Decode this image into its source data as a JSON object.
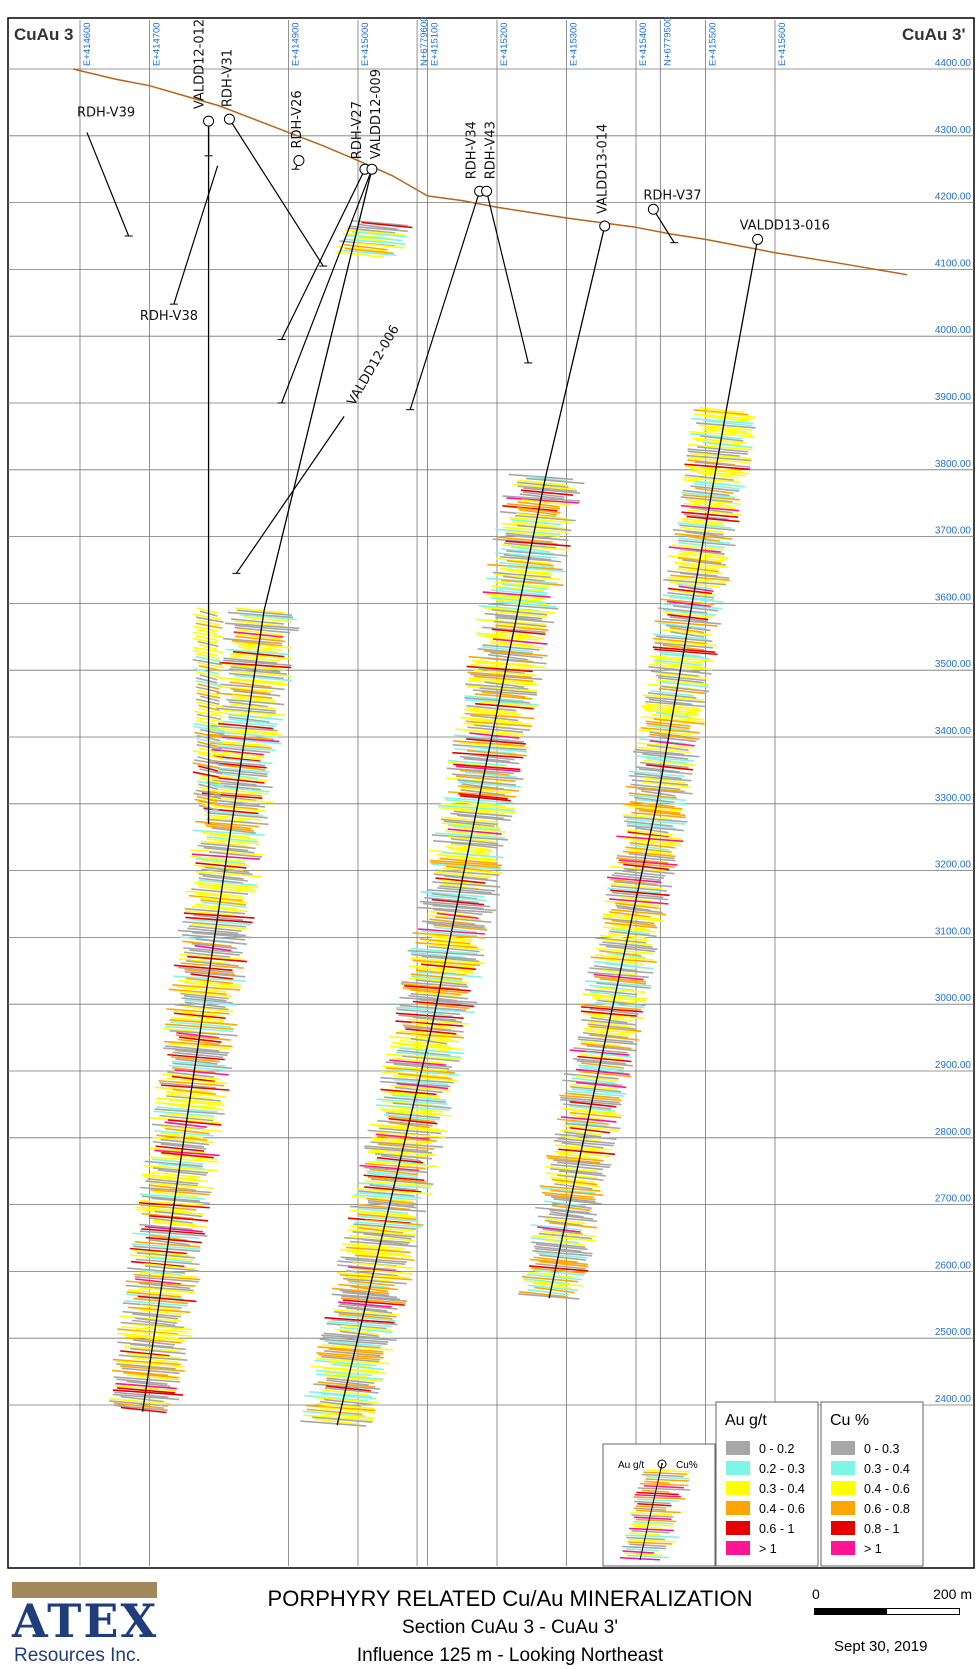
{
  "section": {
    "left_label": "CuAu 3",
    "right_label": "CuAu 3'",
    "eastings": [
      {
        "label": "E+414600",
        "x": 414600
      },
      {
        "label": "E+414700",
        "x": 414700
      },
      {
        "label": "E+414900",
        "x": 414900
      },
      {
        "label": "E+415000",
        "x": 415000
      },
      {
        "label": "N+6779600",
        "x": 415085
      },
      {
        "label": "E+415100",
        "x": 415100
      },
      {
        "label": "E+415200",
        "x": 415200
      },
      {
        "label": "E+415300",
        "x": 415300
      },
      {
        "label": "E+415400",
        "x": 415400
      },
      {
        "label": "N+6779500",
        "x": 415435
      },
      {
        "label": "E+415500",
        "x": 415500
      },
      {
        "label": "E+415600",
        "x": 415600
      }
    ],
    "elevations": [
      "4400.00",
      "4300.00",
      "4200.00",
      "4100.00",
      "4000.00",
      "3900.00",
      "3800.00",
      "3700.00",
      "3600.00",
      "3500.00",
      "3400.00",
      "3300.00",
      "3200.00",
      "3100.00",
      "3000.00",
      "2900.00",
      "2800.00",
      "2700.00",
      "2600.00",
      "2500.00",
      "2400.00"
    ],
    "topography": [
      [
        414590,
        4400
      ],
      [
        414650,
        4385
      ],
      [
        414700,
        4375
      ],
      [
        414750,
        4360
      ],
      [
        414800,
        4345
      ],
      [
        414850,
        4325
      ],
      [
        414900,
        4305
      ],
      [
        414950,
        4285
      ],
      [
        415000,
        4263
      ],
      [
        415050,
        4240
      ],
      [
        415100,
        4210
      ],
      [
        415150,
        4203
      ],
      [
        415200,
        4193
      ],
      [
        415250,
        4185
      ],
      [
        415300,
        4177
      ],
      [
        415350,
        4170
      ],
      [
        415400,
        4163
      ],
      [
        415450,
        4153
      ],
      [
        415500,
        4145
      ],
      [
        415550,
        4135
      ],
      [
        415600,
        4125
      ],
      [
        415700,
        4108
      ],
      [
        415790,
        4092
      ]
    ],
    "holes": [
      {
        "id": "VALDD12-012",
        "collar": [
          414785,
          4322
        ],
        "toe": [
          414785,
          4270
        ],
        "major": true,
        "lbl_dx": -5,
        "lbl_dy": -12,
        "rot": -90
      },
      {
        "id": "RDH-V31",
        "collar": [
          414815,
          4325
        ],
        "toe": [
          414950,
          4105
        ],
        "major": false,
        "lbl_dx": 2,
        "lbl_dy": -12,
        "rot": -90
      },
      {
        "id": "RDH-V26",
        "collar": [
          414915,
          4263
        ],
        "toe": [
          414910,
          4250
        ],
        "major": false,
        "lbl_dx": 2,
        "lbl_dy": -12,
        "rot": -90
      },
      {
        "id": "RDH-V27",
        "collar": [
          415010,
          4250
        ],
        "toe": [
          414890,
          3995
        ],
        "major": false,
        "lbl_dx": -4,
        "lbl_dy": -10,
        "rot": -90
      },
      {
        "id": "VALDD12-009",
        "collar": [
          415020,
          4250
        ],
        "toe": [
          414890,
          3900
        ],
        "major": true,
        "lbl_dx": 8,
        "lbl_dy": -10,
        "rot": -90
      },
      {
        "id": "RDH-V34",
        "collar": [
          415175,
          4217
        ],
        "toe": [
          415075,
          3890
        ],
        "major": false,
        "lbl_dx": -4,
        "lbl_dy": -12,
        "rot": -90
      },
      {
        "id": "RDH-V43",
        "collar": [
          415185,
          4217
        ],
        "toe": [
          415245,
          3960
        ],
        "major": false,
        "lbl_dx": 8,
        "lbl_dy": -12,
        "rot": -90
      },
      {
        "id": "VALDD13-014",
        "collar": [
          415355,
          4165
        ],
        "toe": [
          415355,
          4160
        ],
        "major": true,
        "lbl_dx": 2,
        "lbl_dy": -12,
        "rot": -90
      },
      {
        "id": "RDH-V37",
        "collar": [
          415425,
          4190
        ],
        "toe": [
          415455,
          4140
        ],
        "major": false,
        "lbl_dx": -10,
        "lbl_dy": -10,
        "rot": 0
      },
      {
        "id": "VALDD13-016",
        "collar": [
          415575,
          4145
        ],
        "toe": [
          415575,
          4140
        ],
        "major": true,
        "lbl_dx": -18,
        "lbl_dy": -10,
        "rot": 0
      },
      {
        "id": "RDH-V39",
        "collar": [
          414610,
          4305
        ],
        "toe": [
          414670,
          4150
        ],
        "major": false,
        "lbl_dx": -10,
        "lbl_dy": -16,
        "rot": 0
      },
      {
        "id": "RDH-V38",
        "collar": [
          414798,
          4255
        ],
        "toe": [
          414735,
          4048
        ],
        "major": false,
        "lbl_dx": -34,
        "lbl_dy": 16,
        "rot": 0,
        "lbl_at_toe": true
      },
      {
        "id": "VALDD12-006",
        "collar": [
          414980,
          3880
        ],
        "toe": [
          414825,
          3645
        ],
        "major": false,
        "lbl_dx": 10,
        "lbl_dy": -10,
        "rot": -60
      }
    ],
    "drill_traces": [
      {
        "id": "VALDD12-012",
        "points": [
          [
            414785,
            4322
          ],
          [
            414785,
            3270
          ]
        ],
        "ink": "#000"
      },
      {
        "id": "VALDD12-009",
        "points": [
          [
            415020,
            4250
          ],
          [
            414865,
            3590
          ],
          [
            414690,
            2390
          ]
        ],
        "ink": "#000"
      },
      {
        "id": "VALDD13-014",
        "points": [
          [
            415355,
            4165
          ],
          [
            415270,
            3790
          ],
          [
            415105,
            2960
          ],
          [
            414970,
            2370
          ]
        ],
        "ink": "#000"
      },
      {
        "id": "VALDD13-016",
        "points": [
          [
            415575,
            4145
          ],
          [
            415530,
            3890
          ],
          [
            415430,
            3300
          ],
          [
            415275,
            2560
          ]
        ],
        "ink": "#000"
      }
    ]
  },
  "legend": {
    "au_title": "Au g/t",
    "cu_title": "Cu %",
    "au_classes": [
      "0 - 0.2",
      "0.2 - 0.3",
      "0.3 - 0.4",
      "0.4 - 0.6",
      "0.6 - 1",
      "> 1"
    ],
    "cu_classes": [
      "0 - 0.3",
      "0.3 - 0.4",
      "0.4 - 0.6",
      "0.6 - 0.8",
      "0.8 - 1",
      "> 1"
    ],
    "colors": [
      "#a6a6a6",
      "#7ff5e6",
      "#ffff00",
      "#ffa500",
      "#e60000",
      "#ff1493"
    ],
    "inset_au": "Au g/t",
    "inset_cu": "Cu%"
  },
  "footer": {
    "logo_word": "ATEX",
    "logo_sub": "Resources Inc.",
    "title": "PORPHYRY RELATED Cu/Au MINERALIZATION",
    "subtitle": "Section CuAu 3 - CuAu 3'",
    "influence": "Influence 125 m  -  Looking Northeast",
    "scale_zero": "0",
    "scale_max": "200 m",
    "date": "Sept 30, 2019"
  }
}
